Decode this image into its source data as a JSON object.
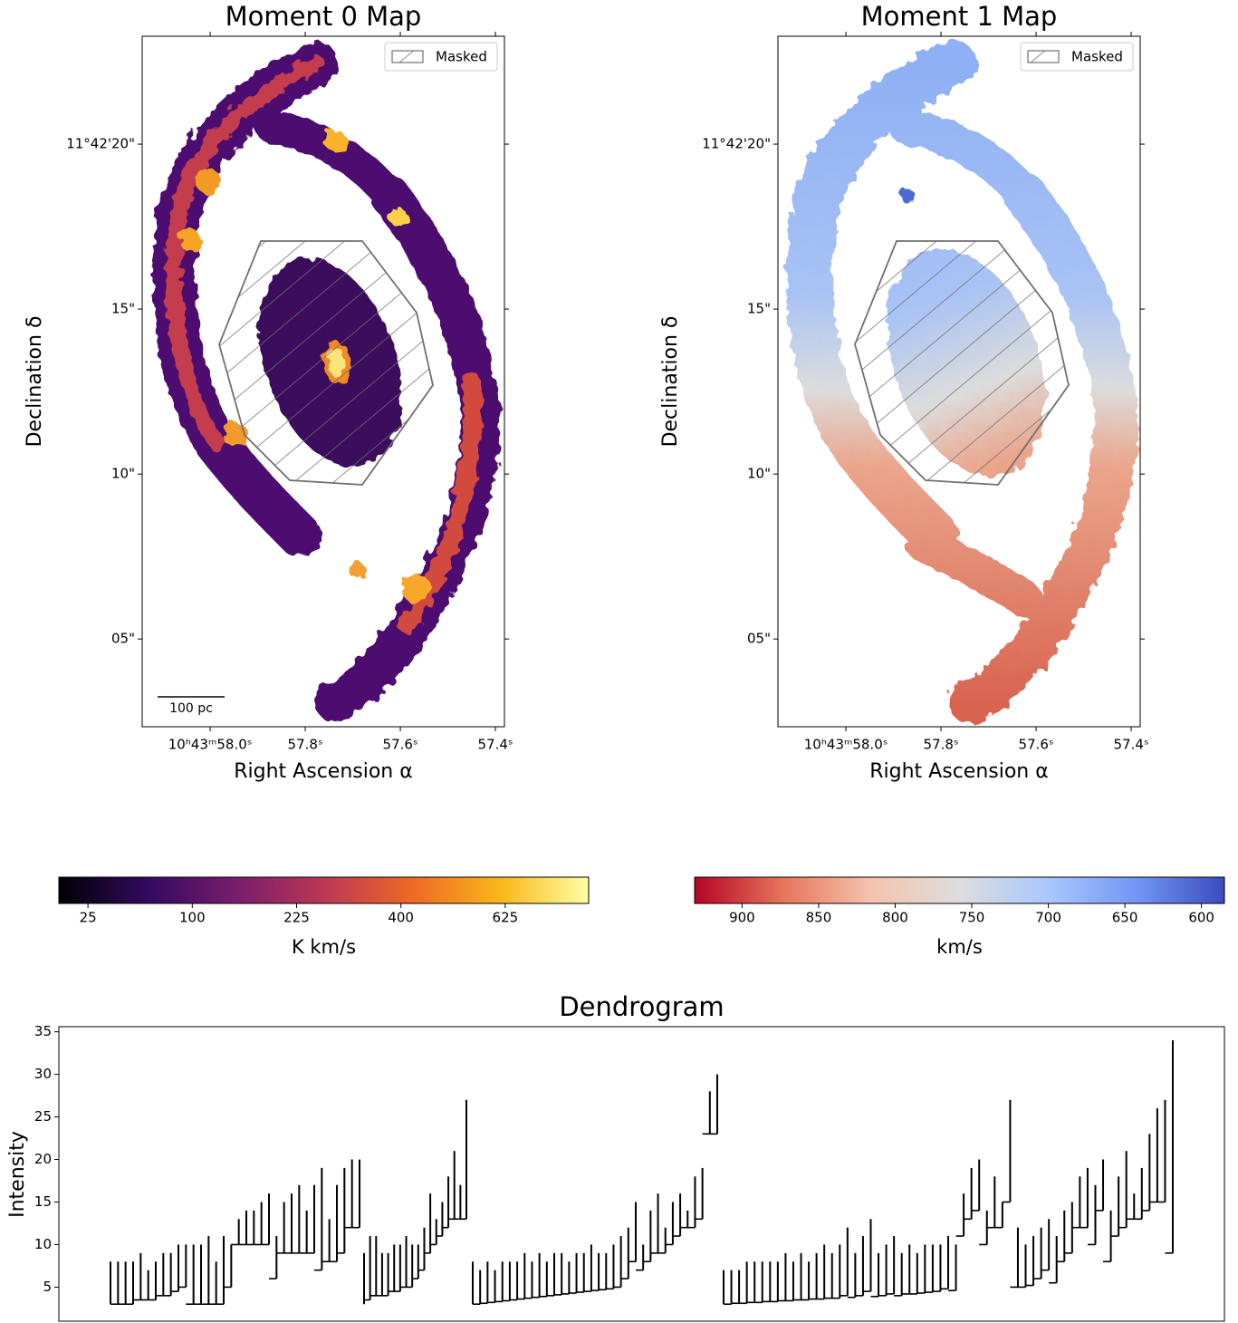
{
  "chart_data": [
    {
      "type": "image",
      "title": "Moment 0 Map",
      "xlabel": "Right Ascension α",
      "ylabel": "Declination δ",
      "xlim": [
        58.143,
        57.381
      ],
      "ylim": [
        2.34,
        23.27
      ],
      "xticks": [
        {
          "value": 58.0,
          "label": "10ʰ43ᵐ58.0ˢ"
        },
        {
          "value": 57.8,
          "label": "57.8ˢ"
        },
        {
          "value": 57.6,
          "label": "57.6ˢ"
        },
        {
          "value": 57.4,
          "label": "57.4ˢ"
        }
      ],
      "yticks": [
        {
          "value": 20,
          "label": "11°42'20\""
        },
        {
          "value": 15,
          "label": "15\""
        },
        {
          "value": 10,
          "label": "10\""
        },
        {
          "value": 5,
          "label": "05\""
        }
      ],
      "legend": "Masked",
      "legend_loc": "upper right",
      "scalebar": "100 pc",
      "colormap": "inferno"
    },
    {
      "type": "image",
      "title": "Moment 1 Map",
      "xlabel": "Right Ascension α",
      "ylabel": "Declination δ",
      "xlim": [
        58.143,
        57.381
      ],
      "ylim": [
        2.34,
        23.27
      ],
      "xticks": [
        {
          "value": 58.0,
          "label": "10ʰ43ᵐ58.0ˢ"
        },
        {
          "value": 57.8,
          "label": "57.8ˢ"
        },
        {
          "value": 57.6,
          "label": "57.6ˢ"
        },
        {
          "value": 57.4,
          "label": "57.4ˢ"
        }
      ],
      "yticks": [
        {
          "value": 20,
          "label": "11°42'20\""
        },
        {
          "value": 15,
          "label": "15\""
        },
        {
          "value": 10,
          "label": "10\""
        },
        {
          "value": 5,
          "label": "05\""
        }
      ],
      "legend": "Masked",
      "legend_loc": "upper right",
      "colormap": "coolwarm_r"
    },
    {
      "type": "colorbar",
      "label": "K km/s",
      "clim": [
        13,
        841
      ],
      "scale": "sqrt",
      "colormap": "inferno",
      "ticks": [
        25,
        100,
        225,
        400,
        625
      ]
    },
    {
      "type": "colorbar",
      "label": "km/s",
      "clim": [
        931,
        585
      ],
      "scale": "linear",
      "colormap": "coolwarm_r",
      "ticks": [
        900,
        850,
        800,
        750,
        700,
        650,
        600
      ]
    },
    {
      "type": "dendrogram",
      "title": "Dendrogram",
      "ylabel": "Intensity",
      "ylim": [
        1,
        35.6
      ],
      "yticks": [
        5,
        10,
        15,
        20,
        25,
        30,
        35
      ],
      "color": "#000000",
      "groups": [
        {
          "base": [
            3,
            3,
            3,
            3,
            3.5,
            3.5,
            3.5,
            4,
            4,
            4.5,
            5,
            3,
            3,
            3,
            3,
            3,
            5,
            10,
            10,
            10,
            10,
            10,
            6,
            9,
            9,
            9,
            9,
            9,
            7,
            8,
            8,
            9,
            12,
            12
          ],
          "peak": [
            8,
            8,
            8,
            8,
            9,
            7,
            8,
            9,
            9,
            10,
            10,
            10,
            10,
            11,
            8,
            11,
            10,
            13,
            14,
            14,
            15,
            16,
            11,
            15,
            16,
            17,
            14,
            17,
            19,
            13,
            17,
            19,
            20,
            20
          ]
        },
        {
          "base": [
            3,
            3.5,
            4,
            4,
            4,
            4.5,
            4.5,
            5,
            5,
            6,
            7,
            9,
            10,
            11,
            12,
            13,
            13,
            13
          ],
          "peak": [
            9,
            11,
            11,
            9,
            9,
            10,
            10,
            11,
            10,
            10,
            12,
            16,
            13,
            15,
            18,
            21,
            17,
            27
          ]
        },
        {
          "base": [
            3,
            3,
            3.1,
            3.2,
            3.3,
            3.4,
            3.5,
            3.6,
            3.7,
            3.8,
            3.9,
            4,
            4.1,
            4.2,
            4.3,
            4.4,
            4.5,
            4.6,
            4.7,
            4.8,
            5,
            6,
            8,
            7,
            8,
            9,
            9,
            10,
            11,
            12,
            12,
            13,
            23,
            23
          ],
          "peak": [
            8,
            7,
            8,
            7,
            8,
            8,
            8,
            9,
            8,
            9,
            8,
            9,
            9,
            8,
            9,
            9,
            10,
            9,
            9,
            10,
            11,
            12,
            15,
            10,
            14,
            16,
            12,
            15,
            16,
            14,
            18,
            19,
            28,
            30
          ]
        },
        {
          "base": [
            3,
            3,
            3.1,
            3.1,
            3.2,
            3.2,
            3.3,
            3.3,
            3.4,
            3.4,
            3.5,
            3.5,
            3.6,
            3.6,
            3.7,
            3.7,
            4,
            3.8,
            4,
            4.5,
            3.9,
            4,
            4.2,
            4,
            4.2,
            4.2,
            4.3,
            4.4,
            4.5,
            4.8,
            4.6,
            11,
            13,
            14,
            10,
            12,
            12,
            15,
            5,
            5,
            5.2,
            6,
            7,
            5.5,
            8,
            9,
            12,
            12,
            10,
            14,
            8,
            11,
            12,
            13,
            13,
            14,
            15,
            15,
            9
          ],
          "peak": [
            7,
            7,
            7,
            8,
            8,
            8,
            8,
            8,
            9,
            8,
            9,
            8,
            9,
            10,
            9,
            10,
            12,
            9,
            11,
            13,
            9,
            10,
            11,
            9,
            10,
            9,
            10,
            10,
            10,
            11,
            10,
            16,
            19,
            20,
            14,
            18,
            15,
            27,
            12,
            10,
            11,
            12,
            13,
            11,
            14,
            15,
            18,
            19,
            17,
            20,
            14,
            18,
            21,
            16,
            19,
            23,
            26,
            27,
            34
          ]
        }
      ]
    }
  ]
}
